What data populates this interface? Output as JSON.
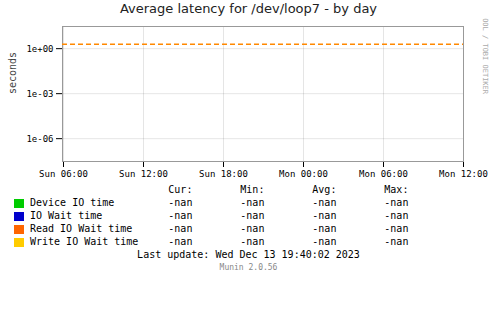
{
  "chart_data": {
    "type": "line",
    "title": "Average latency for /dev/loop7 - by day",
    "ylabel": "seconds",
    "categories": [
      "Sun 06:00",
      "Sun 12:00",
      "Sun 18:00",
      "Mon 00:00",
      "Mon 06:00",
      "Mon 12:00"
    ],
    "series": [
      {
        "name": "Device IO time",
        "color": "#00cc00",
        "values": [
          null,
          null,
          null,
          null,
          null,
          null
        ]
      },
      {
        "name": "IO Wait time",
        "color": "#0000cc",
        "values": [
          null,
          null,
          null,
          null,
          null,
          null
        ]
      },
      {
        "name": "Read IO Wait time",
        "color": "#ff6600",
        "values": [
          null,
          null,
          null,
          null,
          null,
          null
        ]
      },
      {
        "name": "Write IO Wait time",
        "color": "#ffcc00",
        "values": [
          null,
          null,
          null,
          null,
          null,
          null
        ]
      }
    ],
    "hlines": [
      {
        "value": 2.0,
        "color": "#ff8800",
        "line_style": "dashed"
      }
    ],
    "log": "y",
    "ylim": [
      3e-08,
      30
    ],
    "yticks": [
      {
        "value": 1e-06,
        "label": "1e-06"
      },
      {
        "value": 0.001,
        "label": "1e-03"
      },
      {
        "value": 1,
        "label": "1e+00"
      }
    ],
    "grid": true,
    "legend": "bottom",
    "table": {
      "headers": [
        "Cur:",
        "Min:",
        "Avg:",
        "Max:"
      ],
      "rows": [
        [
          "-nan",
          "-nan",
          "-nan",
          "-nan"
        ],
        [
          "-nan",
          "-nan",
          "-nan",
          "-nan"
        ],
        [
          "-nan",
          "-nan",
          "-nan",
          "-nan"
        ],
        [
          "-nan",
          "-nan",
          "-nan",
          "-nan"
        ]
      ]
    },
    "annotations": [
      "Last update: Wed Dec 13 19:40:02 2023",
      "Munin 2.0.56",
      "RRDTOOL / TOBI OETIKER"
    ]
  }
}
